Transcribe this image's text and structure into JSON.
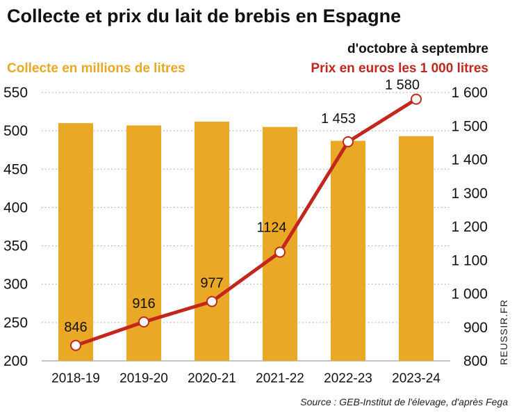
{
  "title": "Collecte et prix du lait de brebis en Espagne",
  "subtitle": "d'octobre à septembre",
  "left_axis_label": "Collecte en millions de litres",
  "right_axis_label": "Prix en euros les 1 000 litres",
  "source": "Source : GEB-Institut de l'élevage, d'après Fega",
  "credit": "REUSSIR.FR",
  "colors": {
    "bar": "#E9A825",
    "line": "#C1271C",
    "left_label": "#E9A825",
    "right_label": "#C1271C",
    "grid": "#9a9a9a"
  },
  "chart_data": {
    "type": "bar+line",
    "categories": [
      "2018-19",
      "2019-20",
      "2020-21",
      "2021-22",
      "2022-23",
      "2023-24"
    ],
    "series": [
      {
        "name": "Collecte en millions de litres",
        "type": "bar",
        "axis": "left",
        "values": [
          510,
          507,
          512,
          505,
          487,
          493
        ]
      },
      {
        "name": "Prix en euros les 1 000 litres",
        "type": "line",
        "axis": "right",
        "values": [
          846,
          916,
          977,
          1124,
          1453,
          1580
        ],
        "labels": [
          "846",
          "916",
          "977",
          "1124",
          "1 453",
          "1 580"
        ]
      }
    ],
    "left_axis": {
      "ylim": [
        200,
        550
      ],
      "ticks": [
        200,
        250,
        300,
        350,
        400,
        450,
        500,
        550
      ],
      "tick_labels": [
        "200",
        "250",
        "300",
        "350",
        "400",
        "450",
        "500",
        "550"
      ]
    },
    "right_axis": {
      "ylim": [
        800,
        1600
      ],
      "ticks": [
        800,
        900,
        1000,
        1100,
        1200,
        1300,
        1400,
        1500,
        1600
      ],
      "tick_labels": [
        "800",
        "900",
        "1 000",
        "1 100",
        "1 200",
        "1 300",
        "1 400",
        "1 500",
        "1 600"
      ]
    },
    "grid": true
  }
}
